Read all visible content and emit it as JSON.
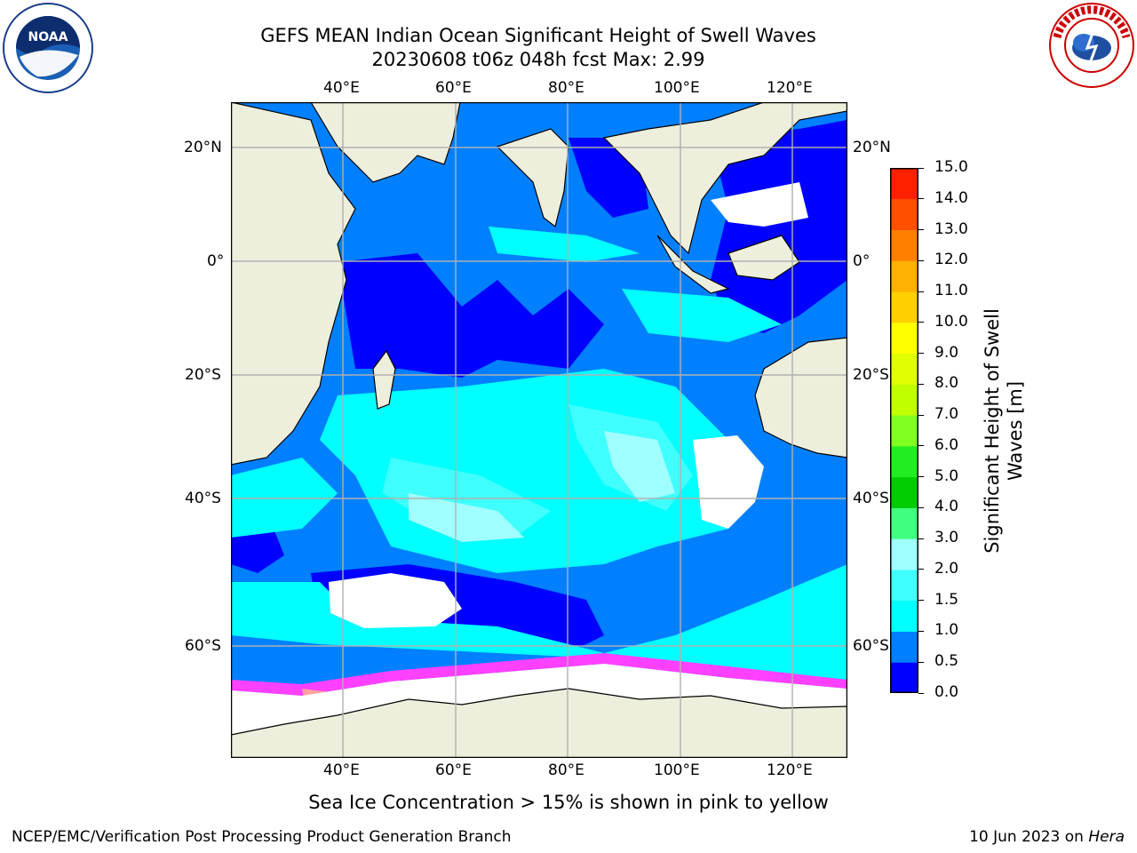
{
  "header": {
    "title_line1": "GEFS MEAN Indian Ocean Significant Height of Swell Waves",
    "title_line2": "20230608 t06z 048h fcst   Max: 2.99"
  },
  "logos": {
    "left": {
      "name": "noaa-logo",
      "text": "NOAA"
    },
    "right": {
      "name": "national-weather-service-logo",
      "text": "NATIONAL WEATHER SERVICE"
    }
  },
  "map": {
    "lon_labels": [
      "40°E",
      "60°E",
      "80°E",
      "100°E",
      "120°E"
    ],
    "lat_labels": [
      "20°N",
      "0°",
      "20°S",
      "40°S",
      "60°S"
    ],
    "land_color": "#eeeedd",
    "ocean_classes": {
      "0.0-0.5": "#0000ff",
      "0.5-1.0": "#0080ff",
      "1.0-1.5": "#00ffff",
      "1.5-2.0": "#40ffff",
      "2.0-3.0": "#a0ffff",
      "ice": "#ff40ff"
    }
  },
  "colorbar": {
    "label_line1": "Significant Height of Swell",
    "label_line2": "Waves [m]",
    "ticks": [
      "0.0",
      "0.5",
      "1.0",
      "1.5",
      "2.0",
      "3.0",
      "4.0",
      "5.0",
      "6.0",
      "7.0",
      "8.0",
      "9.0",
      "10.0",
      "11.0",
      "12.0",
      "13.0",
      "14.0",
      "15.0"
    ],
    "colors": [
      "#0000ff",
      "#0080ff",
      "#00ffff",
      "#40ffff",
      "#a0ffff",
      "#40ff80",
      "#00cc00",
      "#20ee20",
      "#80ff20",
      "#c0ff00",
      "#e0ff00",
      "#ffff00",
      "#ffd000",
      "#ffb000",
      "#ff8000",
      "#ff5000",
      "#ff2000"
    ]
  },
  "footer": {
    "note": "Sea Ice Concentration > 15% is shown in pink to yellow",
    "left": "NCEP/EMC/Verification Post Processing Product Generation Branch",
    "right_prefix": "10 Jun 2023 on ",
    "right_host": "Hera"
  }
}
